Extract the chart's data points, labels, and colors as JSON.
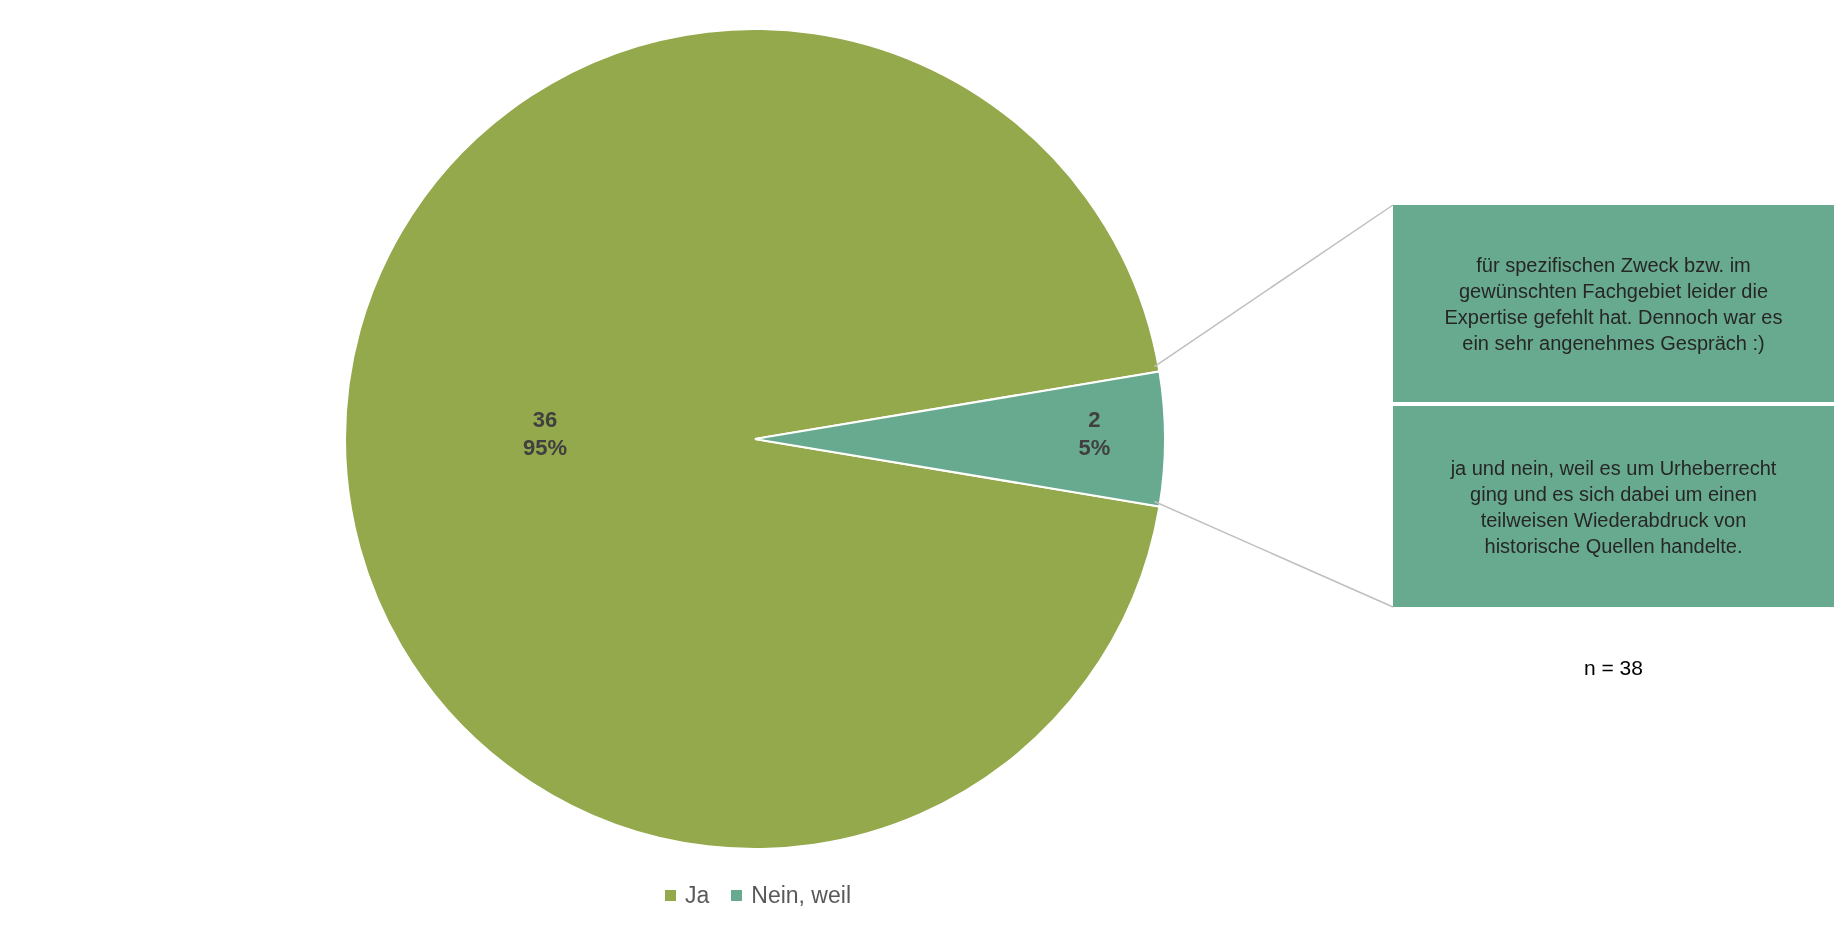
{
  "chart_data": {
    "type": "pie",
    "categories": [
      "Ja",
      "Nein, weil"
    ],
    "values": [
      36,
      2
    ],
    "colors": [
      "#94a84c",
      "#68aa8f"
    ],
    "value_labels": [
      "36\n95%",
      "2\n5%"
    ],
    "legend": "bottom",
    "annotations": [
      "für spezifischen Zweck bzw. im gewünschten Fachgebiet leider die Expertise gefehlt hat. Dennoch war es ein sehr angenehmes Gespräch :)",
      "ja und nein, weil es um Urheberrecht ging und es sich dabei um einen teilweisen Wiederabdruck von historische Quellen handelte.",
      "n = 38"
    ]
  }
}
